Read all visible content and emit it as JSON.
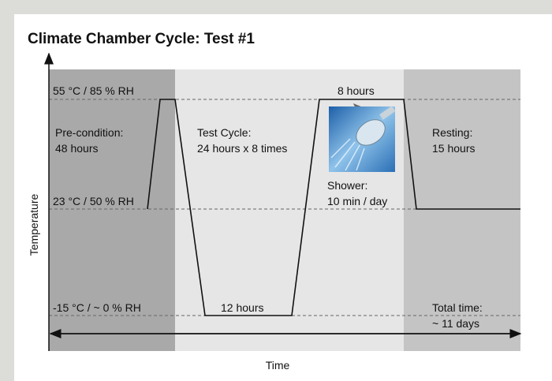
{
  "title": "Climate Chamber Cycle: Test #1",
  "y_axis_label": "Temperature",
  "x_axis_label": "Time",
  "levels": [
    "55 °C / 85 % RH",
    "23 °C / 50 % RH",
    "-15 °C / ~ 0 % RH"
  ],
  "phases": {
    "precondition": [
      "Pre-condition:",
      "48 hours"
    ],
    "test_cycle": [
      "Test Cycle:",
      "24 hours x 8 times"
    ],
    "resting": [
      "Resting:",
      "15 hours"
    ]
  },
  "annotations": {
    "hot_duration": "8 hours",
    "cold_duration": "12 hours",
    "shower": [
      "Shower:",
      "10 min / day"
    ],
    "total_time": [
      "Total time:",
      "~ 11 days"
    ]
  }
}
